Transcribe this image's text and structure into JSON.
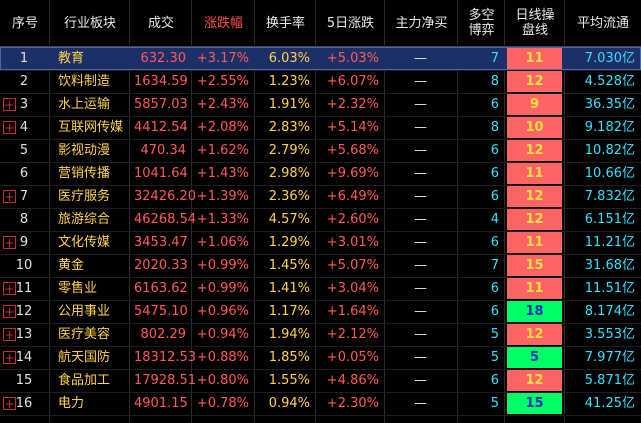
{
  "table": {
    "header": [
      "序号",
      "行业板块",
      "成交",
      "涨跌幅",
      "换手率",
      "5日涨跌",
      "主力净买",
      "多空\n博弈",
      "日线操\n盘线",
      "平均流通"
    ],
    "rows": [
      [
        "1",
        "教育",
        "632.30",
        "+3.17%",
        "6.03%",
        "+5.03%",
        "—",
        "7",
        "11",
        "7.030亿"
      ],
      [
        "2",
        "饮料制造",
        "1634.59",
        "+2.55%",
        "1.23%",
        "+6.07%",
        "—",
        "8",
        "12",
        "4.528亿"
      ],
      [
        "3",
        "水上运输",
        "5857.03",
        "+2.43%",
        "1.91%",
        "+2.32%",
        "—",
        "6",
        "9",
        "36.35亿"
      ],
      [
        "4",
        "互联网传媒",
        "4412.54",
        "+2.08%",
        "2.83%",
        "+5.14%",
        "—",
        "8",
        "10",
        "9.182亿"
      ],
      [
        "5",
        "影视动漫",
        "470.34",
        "+1.62%",
        "2.79%",
        "+5.68%",
        "—",
        "6",
        "12",
        "10.82亿"
      ],
      [
        "6",
        "营销传播",
        "1041.64",
        "+1.43%",
        "2.98%",
        "+9.69%",
        "—",
        "6",
        "11",
        "10.66亿"
      ],
      [
        "7",
        "医疗服务",
        "32426.20",
        "+1.39%",
        "2.36%",
        "+6.49%",
        "—",
        "6",
        "12",
        "7.832亿"
      ],
      [
        "8",
        "旅游综合",
        "46268.54",
        "+1.33%",
        "4.57%",
        "+2.60%",
        "—",
        "4",
        "12",
        "6.151亿"
      ],
      [
        "9",
        "文化传媒",
        "3453.47",
        "+1.06%",
        "1.29%",
        "+3.01%",
        "—",
        "6",
        "11",
        "11.21亿"
      ],
      [
        "10",
        "黄金",
        "2020.33",
        "+0.99%",
        "1.45%",
        "+5.07%",
        "—",
        "7",
        "15",
        "31.68亿"
      ],
      [
        "11",
        "零售业",
        "6163.62",
        "+0.99%",
        "1.41%",
        "+3.04%",
        "—",
        "6",
        "11",
        "11.51亿"
      ],
      [
        "12",
        "公用事业",
        "5475.10",
        "+0.96%",
        "1.17%",
        "+1.64%",
        "—",
        "6",
        "18",
        "8.174亿"
      ],
      [
        "13",
        "医疗美容",
        "802.29",
        "+0.94%",
        "1.94%",
        "+2.12%",
        "—",
        "5",
        "12",
        "3.553亿"
      ],
      [
        "14",
        "航天国防",
        "18312.53",
        "+0.88%",
        "1.85%",
        "+0.05%",
        "—",
        "5",
        "5",
        "7.977亿"
      ],
      [
        "15",
        "食品加工",
        "17928.51",
        "+0.80%",
        "1.55%",
        "+4.86%",
        "—",
        "6",
        "12",
        "5.871亿"
      ],
      [
        "16",
        "电力",
        "4901.15",
        "+0.78%",
        "0.94%",
        "+2.30%",
        "—",
        "5",
        "15",
        "41.25亿"
      ]
    ],
    "daily_line_colors": [
      "#ff6464",
      "#ff6464",
      "#ff6464",
      "#ff6464",
      "#ff6464",
      "#ff6464",
      "#ff6464",
      "#ff6464",
      "#ff6464",
      "#ff6464",
      "#ff6464",
      "#00ff66",
      "#ff6464",
      "#00ff66",
      "#ff6464",
      "#00ff66"
    ]
  }
}
